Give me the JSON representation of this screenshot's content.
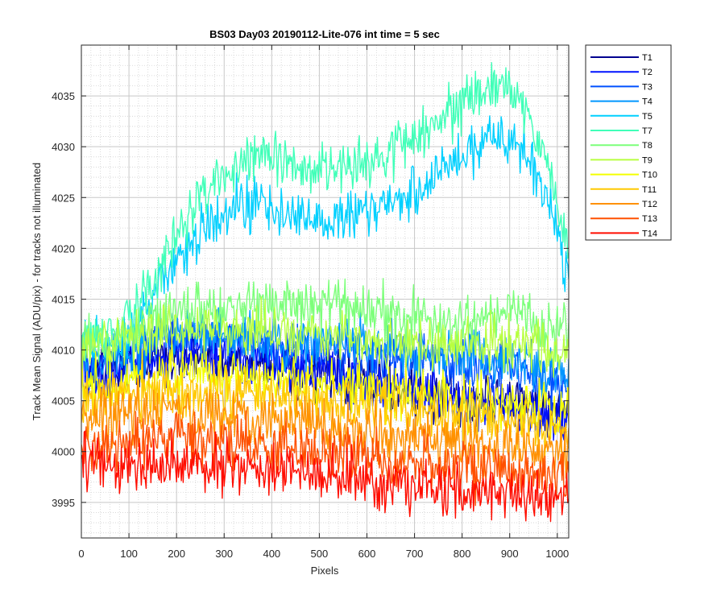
{
  "chart_data": {
    "type": "line",
    "title": "BS03 Day03 20190112-Lite-076 int time = 5 sec",
    "xlabel": "Pixels",
    "ylabel": "Track Mean Signal (ADU/pix) - for tracks not illuminated",
    "xlim": [
      0,
      1024
    ],
    "ylim": [
      3991.5,
      4040
    ],
    "xticks": [
      0,
      100,
      200,
      300,
      400,
      500,
      600,
      700,
      800,
      900,
      1000
    ],
    "yticks": [
      3995,
      4000,
      4005,
      4010,
      4015,
      4020,
      4025,
      4030,
      4035
    ],
    "grid": "major and minor, dotted",
    "legend_position": "outside-right",
    "noise_amplitude": 1.3,
    "series": [
      {
        "name": "T1",
        "color": "#00008f",
        "x": [
          0,
          100,
          200,
          300,
          400,
          500,
          600,
          700,
          800,
          900,
          1024
        ],
        "values": [
          4007.5,
          4008.5,
          4009.5,
          4009,
          4008.5,
          4008,
          4007,
          4006,
          4005,
          4005,
          4004
        ]
      },
      {
        "name": "T2",
        "color": "#0012ff",
        "x": [
          0,
          100,
          200,
          300,
          400,
          500,
          600,
          700,
          800,
          900,
          1024
        ],
        "values": [
          4007.5,
          4008.5,
          4010,
          4009.5,
          4009,
          4008,
          4007,
          4006,
          4005,
          4004.5,
          4003
        ]
      },
      {
        "name": "T3",
        "color": "#0050ff",
        "x": [
          0,
          100,
          200,
          300,
          400,
          500,
          600,
          700,
          800,
          900,
          1024
        ],
        "values": [
          4008,
          4009.5,
          4011.5,
          4011,
          4010.5,
          4010,
          4009.5,
          4009,
          4008.5,
          4008.5,
          4006
        ]
      },
      {
        "name": "T4",
        "color": "#0096ff",
        "x": [
          0,
          100,
          200,
          300,
          400,
          500,
          600,
          700,
          800,
          900,
          1024
        ],
        "values": [
          4008.5,
          4010,
          4012,
          4011.5,
          4011,
          4011,
          4010.5,
          4010,
          4009.5,
          4009,
          4007.5
        ]
      },
      {
        "name": "T5",
        "color": "#00d0ff",
        "x": [
          0,
          80,
          150,
          200,
          260,
          330,
          400,
          460,
          560,
          650,
          720,
          800,
          870,
          920,
          970,
          1000,
          1024
        ],
        "values": [
          4010,
          4010.5,
          4015,
          4019,
          4022,
          4024.5,
          4024.5,
          4022.5,
          4023.5,
          4024.5,
          4026,
          4029,
          4031,
          4030,
          4026,
          4021,
          4016
        ]
      },
      {
        "name": "T7",
        "color": "#40ffb8",
        "x": [
          0,
          80,
          150,
          200,
          260,
          330,
          400,
          480,
          560,
          650,
          720,
          800,
          870,
          920,
          970,
          1000,
          1024
        ],
        "values": [
          4011,
          4011.5,
          4017,
          4021.5,
          4025.5,
          4028,
          4029,
          4027.5,
          4028,
          4029.5,
          4031,
          4034,
          4036,
          4034.5,
          4030,
          4024,
          4019
        ]
      },
      {
        "name": "T8",
        "color": "#7cff7a",
        "x": [
          0,
          100,
          200,
          300,
          400,
          500,
          600,
          700,
          800,
          900,
          1024
        ],
        "values": [
          4010.5,
          4012,
          4014,
          4014,
          4014.5,
          4014.5,
          4014,
          4013,
          4013,
          4013.5,
          4012
        ]
      },
      {
        "name": "T9",
        "color": "#b8ff40",
        "x": [
          0,
          100,
          200,
          300,
          400,
          500,
          600,
          700,
          800,
          900,
          1024
        ],
        "values": [
          4010,
          4011,
          4012,
          4012,
          4012,
          4011.5,
          4011,
          4010.5,
          4010.5,
          4011,
          4010
        ]
      },
      {
        "name": "T10",
        "color": "#f4ff00",
        "x": [
          0,
          100,
          200,
          300,
          400,
          500,
          600,
          700,
          800,
          900,
          1024
        ],
        "values": [
          4006,
          4007,
          4008,
          4007.5,
          4007,
          4006.5,
          4006,
          4005.5,
          4005,
          4004.5,
          4003.5
        ]
      },
      {
        "name": "T11",
        "color": "#ffc800",
        "x": [
          0,
          100,
          200,
          300,
          400,
          500,
          600,
          700,
          800,
          900,
          1024
        ],
        "values": [
          4004.5,
          4005.5,
          4006,
          4006,
          4005.5,
          4005,
          4004.5,
          4004,
          4003.5,
          4003,
          4002
        ]
      },
      {
        "name": "T12",
        "color": "#ff9100",
        "x": [
          0,
          100,
          200,
          300,
          400,
          500,
          600,
          700,
          800,
          900,
          1024
        ],
        "values": [
          4003,
          4003.5,
          4004,
          4003.5,
          4003,
          4002.5,
          4002,
          4001.5,
          4001,
          4000.5,
          3999.5
        ]
      },
      {
        "name": "T13",
        "color": "#ff5000",
        "x": [
          0,
          100,
          200,
          300,
          400,
          500,
          600,
          700,
          800,
          900,
          1024
        ],
        "values": [
          4001,
          4001,
          4001.5,
          4001,
          4000.5,
          4000,
          3999.5,
          3999,
          3998.5,
          3998,
          3997.5
        ]
      },
      {
        "name": "T14",
        "color": "#ff0d00",
        "x": [
          0,
          100,
          200,
          300,
          400,
          500,
          600,
          700,
          800,
          900,
          1024
        ],
        "values": [
          3999.5,
          3998.5,
          3998.5,
          3998.5,
          3998,
          3997.5,
          3997,
          3996.5,
          3996,
          3995.5,
          3995.5
        ]
      }
    ]
  }
}
